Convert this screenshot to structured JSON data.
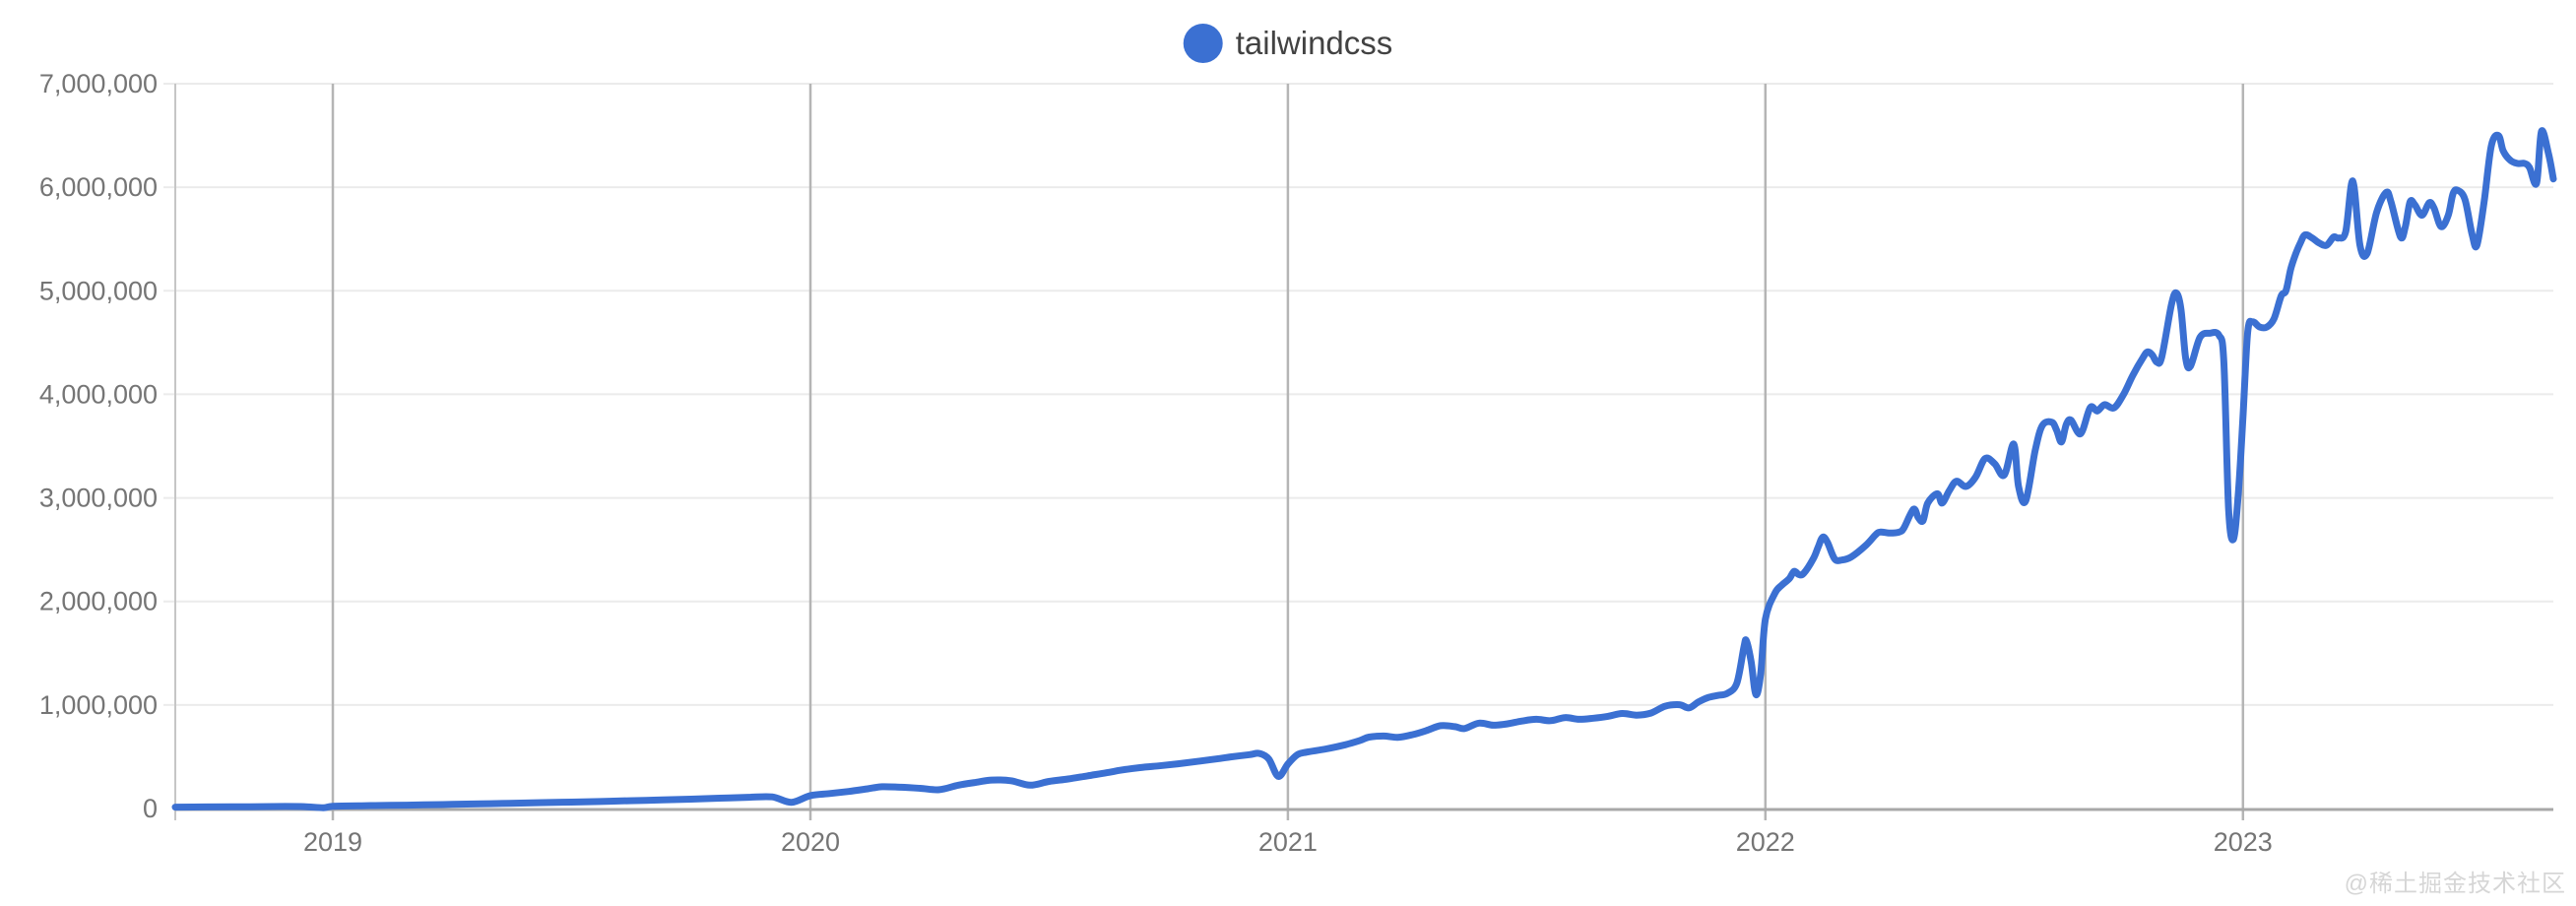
{
  "legend": {
    "items": [
      {
        "label": "tailwindcss",
        "marker_color": "#3b70d2"
      }
    ],
    "position": "top-center"
  },
  "watermark": {
    "text": "@稀土掘金技术社区",
    "color": "#d6d6d6"
  },
  "axes": {
    "y": {
      "tick_labels": [
        "0",
        "1,000,000",
        "2,000,000",
        "3,000,000",
        "4,000,000",
        "5,000,000",
        "6,000,000",
        "7,000,000"
      ],
      "tick_values": [
        0,
        1,
        2,
        3,
        4,
        5,
        6,
        7
      ],
      "label_color": "#757575"
    },
    "x": {
      "tick_labels": [
        "2019",
        "2020",
        "2021",
        "2022",
        "2023"
      ],
      "tick_values": [
        2019,
        2020,
        2021,
        2022,
        2023
      ],
      "label_color": "#757575"
    }
  },
  "colors": {
    "line": "#3b70d2",
    "grid_horizontal": "#ebebeb",
    "grid_vertical_year": "#b5b5b5",
    "axis_baseline": "#a8a8a8",
    "plot_left_border": "#c6c6c6",
    "background": "#ffffff"
  },
  "chart_data": {
    "type": "line",
    "grid": true,
    "legend_position": "top-center",
    "x_range": [
      2018.67,
      2023.65
    ],
    "y_range": [
      0,
      7
    ],
    "y_value_unit": "millions (y-axis labeled 0 to 7,000,000)",
    "x_ticks": [
      2019,
      2020,
      2021,
      2022,
      2023
    ],
    "y_ticks": [
      0,
      1,
      2,
      3,
      4,
      5,
      6,
      7
    ],
    "series": [
      {
        "name": "tailwindcss",
        "color": "#3b70d2",
        "points": [
          [
            2018.67,
            0.013
          ],
          [
            2018.73,
            0.015
          ],
          [
            2018.79,
            0.016
          ],
          [
            2018.85,
            0.018
          ],
          [
            2018.9,
            0.02
          ],
          [
            2018.94,
            0.018
          ],
          [
            2018.98,
            0.008
          ],
          [
            2019.0,
            0.022
          ],
          [
            2019.06,
            0.027
          ],
          [
            2019.12,
            0.03
          ],
          [
            2019.19,
            0.035
          ],
          [
            2019.25,
            0.04
          ],
          [
            2019.31,
            0.045
          ],
          [
            2019.37,
            0.05
          ],
          [
            2019.44,
            0.057
          ],
          [
            2019.5,
            0.062
          ],
          [
            2019.56,
            0.068
          ],
          [
            2019.62,
            0.075
          ],
          [
            2019.69,
            0.083
          ],
          [
            2019.75,
            0.09
          ],
          [
            2019.81,
            0.1
          ],
          [
            2019.87,
            0.108
          ],
          [
            2019.92,
            0.112
          ],
          [
            2019.96,
            0.06
          ],
          [
            2020.0,
            0.125
          ],
          [
            2020.04,
            0.145
          ],
          [
            2020.08,
            0.165
          ],
          [
            2020.12,
            0.19
          ],
          [
            2020.15,
            0.21
          ],
          [
            2020.19,
            0.205
          ],
          [
            2020.23,
            0.195
          ],
          [
            2020.27,
            0.182
          ],
          [
            2020.31,
            0.225
          ],
          [
            2020.35,
            0.255
          ],
          [
            2020.38,
            0.275
          ],
          [
            2020.42,
            0.268
          ],
          [
            2020.46,
            0.225
          ],
          [
            2020.5,
            0.262
          ],
          [
            2020.54,
            0.285
          ],
          [
            2020.58,
            0.315
          ],
          [
            2020.62,
            0.345
          ],
          [
            2020.65,
            0.37
          ],
          [
            2020.69,
            0.395
          ],
          [
            2020.73,
            0.412
          ],
          [
            2020.77,
            0.432
          ],
          [
            2020.81,
            0.455
          ],
          [
            2020.85,
            0.478
          ],
          [
            2020.88,
            0.498
          ],
          [
            2020.92,
            0.52
          ],
          [
            2020.94,
            0.532
          ],
          [
            2020.96,
            0.478
          ],
          [
            2020.98,
            0.31
          ],
          [
            2021.0,
            0.43
          ],
          [
            2021.02,
            0.52
          ],
          [
            2021.04,
            0.545
          ],
          [
            2021.08,
            0.575
          ],
          [
            2021.12,
            0.615
          ],
          [
            2021.15,
            0.655
          ],
          [
            2021.17,
            0.69
          ],
          [
            2021.2,
            0.7
          ],
          [
            2021.23,
            0.688
          ],
          [
            2021.26,
            0.712
          ],
          [
            2021.29,
            0.752
          ],
          [
            2021.32,
            0.8
          ],
          [
            2021.35,
            0.79
          ],
          [
            2021.37,
            0.772
          ],
          [
            2021.4,
            0.825
          ],
          [
            2021.43,
            0.805
          ],
          [
            2021.46,
            0.818
          ],
          [
            2021.49,
            0.845
          ],
          [
            2021.52,
            0.862
          ],
          [
            2021.55,
            0.848
          ],
          [
            2021.58,
            0.878
          ],
          [
            2021.61,
            0.862
          ],
          [
            2021.64,
            0.872
          ],
          [
            2021.67,
            0.89
          ],
          [
            2021.7,
            0.918
          ],
          [
            2021.73,
            0.902
          ],
          [
            2021.76,
            0.922
          ],
          [
            2021.79,
            0.988
          ],
          [
            2021.82,
            1.002
          ],
          [
            2021.84,
            0.972
          ],
          [
            2021.86,
            1.03
          ],
          [
            2021.88,
            1.072
          ],
          [
            2021.9,
            1.092
          ],
          [
            2021.92,
            1.112
          ],
          [
            2021.94,
            1.21
          ],
          [
            2021.955,
            1.56
          ],
          [
            2021.96,
            1.62
          ],
          [
            2021.97,
            1.42
          ],
          [
            2021.98,
            1.1
          ],
          [
            2021.99,
            1.3
          ],
          [
            2022.0,
            1.83
          ],
          [
            2022.02,
            2.08
          ],
          [
            2022.035,
            2.16
          ],
          [
            2022.05,
            2.22
          ],
          [
            2022.06,
            2.29
          ],
          [
            2022.07,
            2.26
          ],
          [
            2022.08,
            2.27
          ],
          [
            2022.1,
            2.41
          ],
          [
            2022.11,
            2.52
          ],
          [
            2022.12,
            2.62
          ],
          [
            2022.13,
            2.57
          ],
          [
            2022.145,
            2.41
          ],
          [
            2022.16,
            2.4
          ],
          [
            2022.18,
            2.43
          ],
          [
            2022.21,
            2.54
          ],
          [
            2022.23,
            2.64
          ],
          [
            2022.24,
            2.67
          ],
          [
            2022.26,
            2.66
          ],
          [
            2022.28,
            2.67
          ],
          [
            2022.29,
            2.71
          ],
          [
            2022.31,
            2.89
          ],
          [
            2022.32,
            2.81
          ],
          [
            2022.33,
            2.78
          ],
          [
            2022.34,
            2.95
          ],
          [
            2022.36,
            3.04
          ],
          [
            2022.37,
            2.95
          ],
          [
            2022.385,
            3.07
          ],
          [
            2022.4,
            3.16
          ],
          [
            2022.42,
            3.11
          ],
          [
            2022.44,
            3.2
          ],
          [
            2022.46,
            3.38
          ],
          [
            2022.48,
            3.33
          ],
          [
            2022.5,
            3.22
          ],
          [
            2022.52,
            3.52
          ],
          [
            2022.53,
            3.11
          ],
          [
            2022.545,
            2.97
          ],
          [
            2022.565,
            3.46
          ],
          [
            2022.58,
            3.7
          ],
          [
            2022.6,
            3.73
          ],
          [
            2022.61,
            3.65
          ],
          [
            2022.62,
            3.54
          ],
          [
            2022.63,
            3.71
          ],
          [
            2022.64,
            3.75
          ],
          [
            2022.66,
            3.62
          ],
          [
            2022.68,
            3.87
          ],
          [
            2022.695,
            3.84
          ],
          [
            2022.71,
            3.9
          ],
          [
            2022.73,
            3.87
          ],
          [
            2022.75,
            4.0
          ],
          [
            2022.77,
            4.19
          ],
          [
            2022.79,
            4.35
          ],
          [
            2022.8,
            4.41
          ],
          [
            2022.81,
            4.38
          ],
          [
            2022.82,
            4.31
          ],
          [
            2022.83,
            4.36
          ],
          [
            2022.85,
            4.86
          ],
          [
            2022.86,
            4.98
          ],
          [
            2022.87,
            4.83
          ],
          [
            2022.88,
            4.35
          ],
          [
            2022.89,
            4.27
          ],
          [
            2022.91,
            4.55
          ],
          [
            2022.93,
            4.59
          ],
          [
            2022.95,
            4.57
          ],
          [
            2022.96,
            4.31
          ],
          [
            2022.97,
            2.89
          ],
          [
            2022.98,
            2.6
          ],
          [
            2022.99,
            3.02
          ],
          [
            2023.0,
            3.78
          ],
          [
            2023.01,
            4.6
          ],
          [
            2023.02,
            4.7
          ],
          [
            2023.035,
            4.65
          ],
          [
            2023.05,
            4.65
          ],
          [
            2023.065,
            4.73
          ],
          [
            2023.08,
            4.95
          ],
          [
            2023.09,
            5.0
          ],
          [
            2023.1,
            5.21
          ],
          [
            2023.11,
            5.35
          ],
          [
            2023.12,
            5.46
          ],
          [
            2023.13,
            5.54
          ],
          [
            2023.145,
            5.51
          ],
          [
            2023.16,
            5.46
          ],
          [
            2023.175,
            5.44
          ],
          [
            2023.19,
            5.52
          ],
          [
            2023.2,
            5.51
          ],
          [
            2023.215,
            5.57
          ],
          [
            2023.23,
            6.06
          ],
          [
            2023.245,
            5.44
          ],
          [
            2023.26,
            5.36
          ],
          [
            2023.28,
            5.76
          ],
          [
            2023.3,
            5.95
          ],
          [
            2023.31,
            5.86
          ],
          [
            2023.33,
            5.52
          ],
          [
            2023.34,
            5.62
          ],
          [
            2023.35,
            5.86
          ],
          [
            2023.36,
            5.83
          ],
          [
            2023.375,
            5.73
          ],
          [
            2023.39,
            5.85
          ],
          [
            2023.4,
            5.8
          ],
          [
            2023.415,
            5.62
          ],
          [
            2023.43,
            5.73
          ],
          [
            2023.44,
            5.94
          ],
          [
            2023.45,
            5.97
          ],
          [
            2023.465,
            5.88
          ],
          [
            2023.48,
            5.54
          ],
          [
            2023.49,
            5.44
          ],
          [
            2023.505,
            5.86
          ],
          [
            2023.52,
            6.4
          ],
          [
            2023.535,
            6.5
          ],
          [
            2023.545,
            6.35
          ],
          [
            2023.56,
            6.26
          ],
          [
            2023.575,
            6.23
          ],
          [
            2023.59,
            6.23
          ],
          [
            2023.6,
            6.19
          ],
          [
            2023.615,
            6.04
          ],
          [
            2023.625,
            6.54
          ],
          [
            2023.64,
            6.32
          ],
          [
            2023.65,
            6.08
          ]
        ]
      }
    ]
  }
}
